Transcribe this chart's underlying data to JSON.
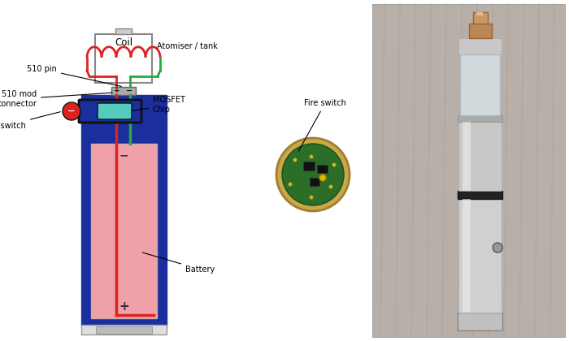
{
  "bg_color": "#ffffff",
  "labels": {
    "coil": "Coil",
    "atomiser": "Atomiser / tank",
    "pin510": "510 pin",
    "mod510": "510 mod\nconnector",
    "fire_switch": "Fire switch",
    "mosfet": "MOSFET\nChip",
    "battery": "Battery",
    "fire_switch2": "Fire switch"
  },
  "colors": {
    "mod_body": "#1a2e9e",
    "battery_fill": "#f0a0a8",
    "coil_wire_red": "#dd2222",
    "green_wire": "#22aa44",
    "red_wire": "#dd2222",
    "fire_button": "#dd2222",
    "mosfet_chip": "#55ccbb",
    "text_color": "#000000"
  }
}
